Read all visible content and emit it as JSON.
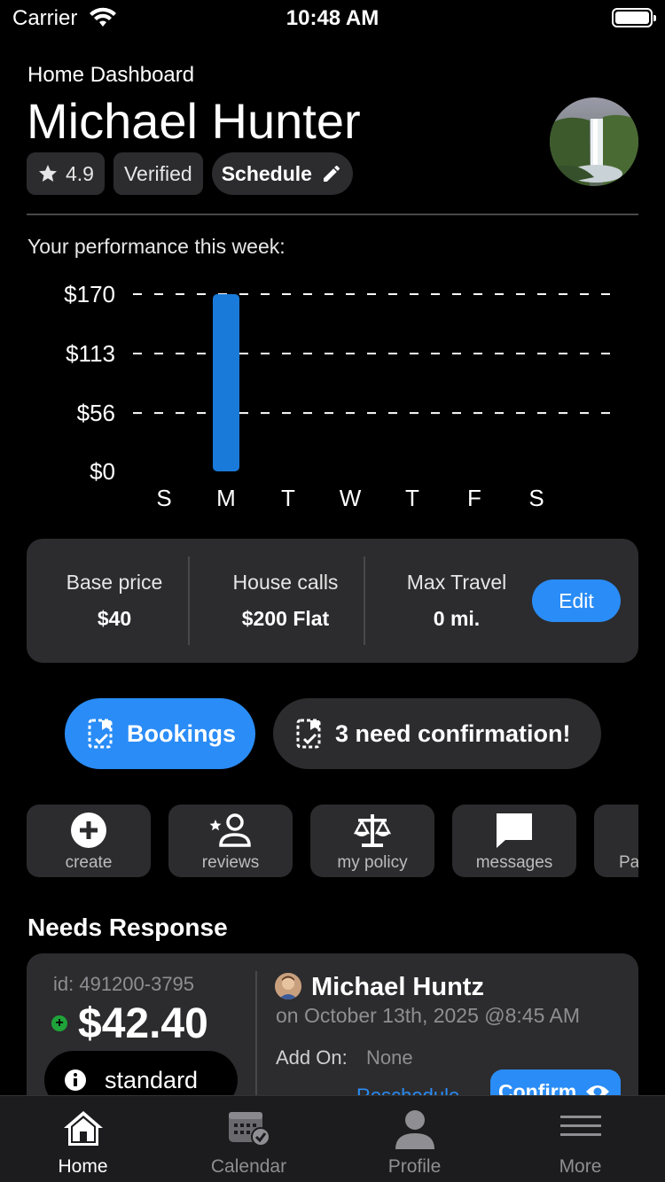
{
  "status_bar": {
    "carrier": "Carrier",
    "time": "10:48 AM"
  },
  "header": {
    "subtitle": "Home Dashboard",
    "name": "Michael Hunter",
    "rating": "4.9",
    "verified": "Verified",
    "schedule_label": "Schedule"
  },
  "performance": {
    "label": "Your performance this week:"
  },
  "chart_data": {
    "type": "bar",
    "categories": [
      "S",
      "M",
      "T",
      "W",
      "T",
      "F",
      "S"
    ],
    "values": [
      0,
      170,
      0,
      0,
      0,
      0,
      0
    ],
    "y_ticks": [
      "$0",
      "$56",
      "$113",
      "$170"
    ],
    "y_tick_values": [
      0,
      56,
      113,
      170
    ],
    "ylim": [
      0,
      170
    ],
    "grid": "dashed horizontal",
    "bar_color": "#1a7ad9",
    "title": "",
    "xlabel": "",
    "ylabel": ""
  },
  "pricing": {
    "base_price_label": "Base price",
    "base_price_value": "$40",
    "house_calls_label": "House calls",
    "house_calls_value": "$200 Flat",
    "max_travel_label": "Max Travel",
    "max_travel_value": "0 mi.",
    "edit_label": "Edit"
  },
  "bookings": {
    "bookings_label": "Bookings",
    "confirmation_label": "3 need confirmation!"
  },
  "quick_actions": [
    {
      "label": "create",
      "icon": "plus-circle-icon"
    },
    {
      "label": "reviews",
      "icon": "person-star-icon"
    },
    {
      "label": "my policy",
      "icon": "scale-icon"
    },
    {
      "label": "messages",
      "icon": "message-icon"
    },
    {
      "label": "Pa",
      "icon": "partial-icon"
    }
  ],
  "needs_response": {
    "title": "Needs Response",
    "id": "id: 491200-3795",
    "price": "$42.40",
    "badge": "standard",
    "client_name": "Michael Huntz",
    "date": "on October 13th, 2025 @8:45 AM",
    "addon_label": "Add On:",
    "addon_value": "None",
    "reschedule_label": "Reschedule",
    "confirm_label": "Confirm"
  },
  "tabbar": {
    "home": "Home",
    "calendar": "Calendar",
    "profile": "Profile",
    "more": "More"
  },
  "colors": {
    "accent": "#2a8cf6",
    "card": "#2c2c2e",
    "background": "#000000"
  }
}
